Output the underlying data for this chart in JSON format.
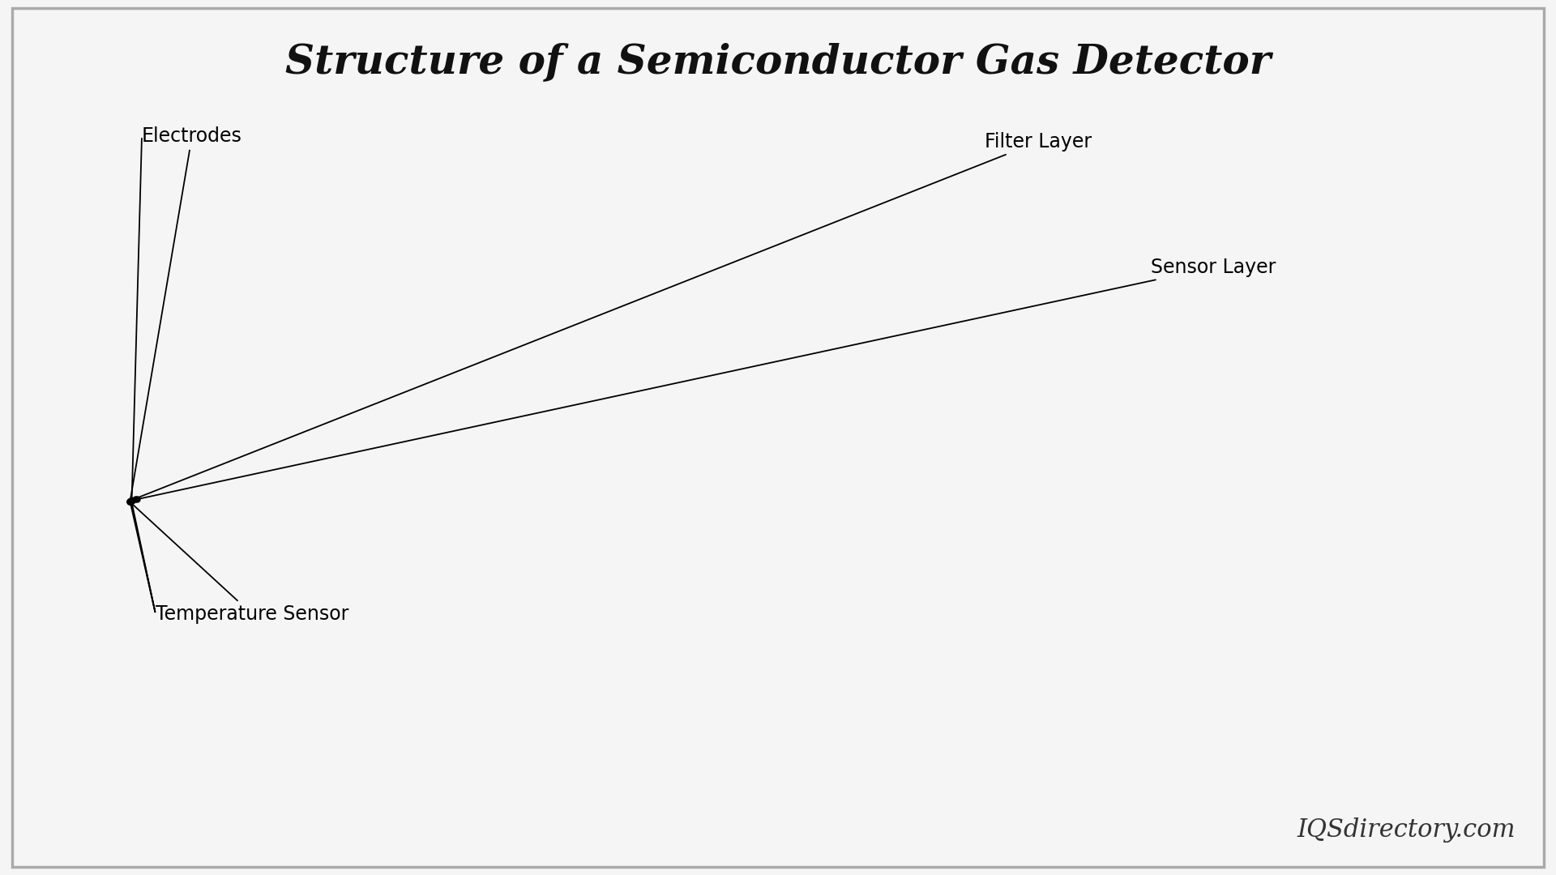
{
  "title": "Structure of a Semiconductor Gas Detector",
  "title_fontsize": 36,
  "title_fontweight": "bold",
  "title_fontstyle": "italic",
  "background_color": "#f5f5f5",
  "watermark": "IQSdirectory.com",
  "watermark_fontsize": 22,
  "labels": {
    "electrodes": "Electrodes",
    "filter_layer": "Filter Layer",
    "sensor_layer": "Sensor Layer",
    "temperature_sensor": "Temperature Sensor"
  },
  "label_fontsize": 17,
  "colors": {
    "base_top": "#b8b8b8",
    "base_front": "#888888",
    "base_right": "#d0d0d0",
    "sensor_top": "#e8e8e8",
    "sensor_front": "#c8c8c8",
    "sensor_right": "#d8d8d8",
    "filter_top": "#787878",
    "filter_front": "#505050",
    "filter_right": "#909090",
    "elec1_top": "#d8d8d8",
    "elec1_highlight": "#f8f8f8",
    "elec1_front": "#909090",
    "elec2_top": "#c8c8c8",
    "elec2_front": "#888888",
    "ts_top": "#b0b0b0",
    "ts_front": "#707070",
    "ts_right": "#c8c8c8",
    "outline": "#111111"
  }
}
